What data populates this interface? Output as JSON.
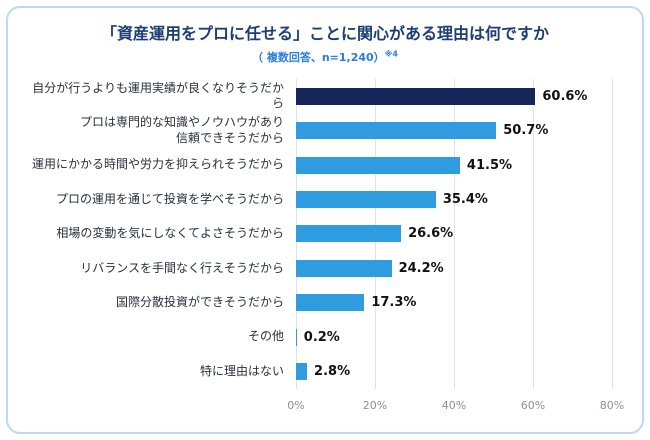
{
  "chart_data": {
    "type": "bar",
    "orientation": "horizontal",
    "title": "「資産運用をプロに任せる」ことに関心がある理由は何ですか",
    "subtitle": "（ 複数回答、n=1,240）",
    "subtitle_note": "※4",
    "categories": [
      "自分が行うよりも運用実績が良くなりそうだから",
      "プロは専門的な知識やノウハウがあり\n信頼できそうだから",
      "運用にかかる時間や労力を抑えられそうだから",
      "プロの運用を通じて投資を学べそうだから",
      "相場の変動を気にしなくてよさそうだから",
      "リバランスを手間なく行えそうだから",
      "国際分散投資ができそうだから",
      "その他",
      "特に理由はない"
    ],
    "values": [
      60.6,
      50.7,
      41.5,
      35.4,
      26.6,
      24.2,
      17.3,
      0.2,
      2.8
    ],
    "value_labels": [
      "60.6%",
      "50.7%",
      "41.5%",
      "35.4%",
      "26.6%",
      "24.2%",
      "17.3%",
      "0.2%",
      "2.8%"
    ],
    "xlim": [
      0,
      80
    ],
    "x_tick_values": [
      0,
      20,
      40,
      60,
      80
    ],
    "x_ticks": [
      "0%",
      "20%",
      "40%",
      "60%",
      "80%"
    ],
    "grid": true,
    "legend": "none",
    "highlight_index": 0,
    "colors": {
      "highlight_bar": "#16265b",
      "default_bar": "#2f9ce0",
      "value_text": "#111111",
      "label_text": "#2b2f3a",
      "grid_line": "#dde2ea",
      "axis_text": "#8a8f98",
      "title_text": "#1c3e75",
      "subtitle_text": "#2a7ddf",
      "card_border": "#bcd8f4"
    }
  }
}
